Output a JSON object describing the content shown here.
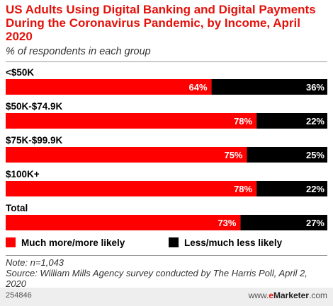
{
  "header": {
    "title": "US Adults Using Digital Banking and Digital Payments During the Coronavirus Pandemic, by Income, April 2020",
    "subtitle": "% of respondents in each group"
  },
  "colors": {
    "more": "#ff0000",
    "less": "#000000",
    "title": "#e3120b"
  },
  "chart_data": {
    "type": "bar",
    "orientation": "horizontal",
    "stacked": true,
    "percent_stacked": true,
    "categories": [
      "<$50K",
      "$50K-$74.9K",
      "$75K-$99.9K",
      "$100K+",
      "Total"
    ],
    "series": [
      {
        "name": "Much more/more likely",
        "values": [
          64,
          78,
          75,
          78,
          73
        ]
      },
      {
        "name": "Less/much less likely",
        "values": [
          36,
          22,
          25,
          22,
          27
        ]
      }
    ],
    "value_labels": {
      "more": [
        "64%",
        "78%",
        "75%",
        "78%",
        "73%"
      ],
      "less": [
        "36%",
        "22%",
        "25%",
        "22%",
        "27%"
      ]
    },
    "xlim": [
      0,
      100
    ],
    "grid": false,
    "legend_position": "bottom"
  },
  "legend": {
    "more": "Much more/more likely",
    "less": "Less/much less likely"
  },
  "notes": {
    "note": "Note: n=1,043",
    "source": "Source: William Mills Agency survey conducted by The Harris Poll, April 2, 2020"
  },
  "footer": {
    "id": "254846",
    "brand_prefix": "www.",
    "brand_e": "e",
    "brand_rest": "Marketer",
    "brand_suffix": ".com"
  }
}
